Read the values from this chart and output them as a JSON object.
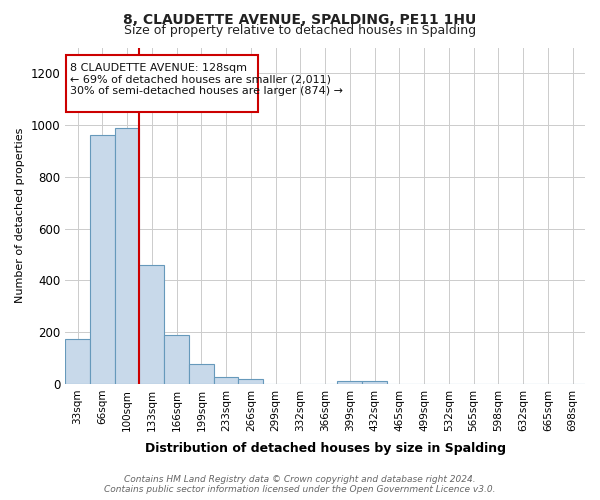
{
  "title1": "8, CLAUDETTE AVENUE, SPALDING, PE11 1HU",
  "title2": "Size of property relative to detached houses in Spalding",
  "xlabel": "Distribution of detached houses by size in Spalding",
  "ylabel": "Number of detached properties",
  "footnote": "Contains HM Land Registry data © Crown copyright and database right 2024.\nContains public sector information licensed under the Open Government Licence v3.0.",
  "bin_labels": [
    "33sqm",
    "66sqm",
    "100sqm",
    "133sqm",
    "166sqm",
    "199sqm",
    "233sqm",
    "266sqm",
    "299sqm",
    "332sqm",
    "366sqm",
    "399sqm",
    "432sqm",
    "465sqm",
    "499sqm",
    "532sqm",
    "565sqm",
    "598sqm",
    "632sqm",
    "665sqm",
    "698sqm"
  ],
  "bar_values": [
    175,
    960,
    990,
    460,
    190,
    75,
    25,
    18,
    0,
    0,
    0,
    10,
    12,
    0,
    0,
    0,
    0,
    0,
    0,
    0,
    0
  ],
  "bar_color": "#c8d9ea",
  "bar_edge_color": "#6699bb",
  "grid_color": "#cccccc",
  "background_color": "#ffffff",
  "red_line_color": "#cc0000",
  "annotation_text_line1": "8 CLAUDETTE AVENUE: 128sqm",
  "annotation_text_line2": "← 69% of detached houses are smaller (2,011)",
  "annotation_text_line3": "30% of semi-detached houses are larger (874) →",
  "annotation_box_color": "#ffffff",
  "annotation_box_edge": "#cc0000",
  "ylim": [
    0,
    1300
  ],
  "yticks": [
    0,
    200,
    400,
    600,
    800,
    1000,
    1200
  ],
  "red_line_bin_index": 3
}
